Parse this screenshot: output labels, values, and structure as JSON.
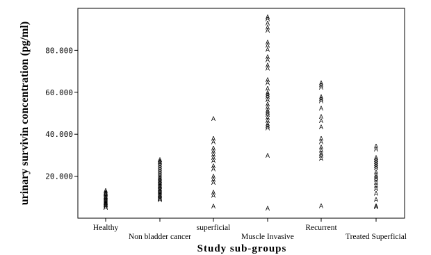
{
  "chart_data": {
    "type": "scatter",
    "ylabel": "urinary survivin concentration (pg/ml)",
    "xlabel": "Study sub-groups",
    "yticks": [
      20,
      40,
      60,
      80
    ],
    "ytick_labels": [
      "20.000",
      "40.000",
      "60.000",
      "80.000"
    ],
    "ylim": [
      0,
      100
    ],
    "categories": [
      "Healthy",
      "Non bladder cancer",
      "superficial",
      "Muscle Invasive",
      "Recurrent",
      "Treated Superficial"
    ],
    "marker": "A",
    "grid": false,
    "series": [
      {
        "category": "Healthy",
        "values": [
          13.2,
          12.5,
          11.8,
          11.2,
          10.5,
          9.8,
          9.2,
          8.6,
          8.0,
          7.4,
          6.9,
          6.4,
          5.8,
          5.2
        ]
      },
      {
        "category": "Non bladder cancer",
        "values": [
          28.0,
          27.2,
          26.5,
          25.5,
          24.5,
          23.5,
          22.5,
          21.5,
          20.5,
          19.6,
          18.8,
          18.0,
          17.2,
          16.5,
          15.8,
          15.0,
          14.3,
          13.6,
          12.9,
          12.2,
          11.5,
          10.8,
          10.1,
          9.4,
          8.7
        ]
      },
      {
        "category": "superficial",
        "values": [
          47.5,
          38.0,
          36.5,
          33.5,
          32.0,
          30.5,
          29.0,
          27.5,
          25.0,
          23.5,
          20.0,
          18.5,
          17.0,
          12.5,
          11.0,
          5.8
        ]
      },
      {
        "category": "Muscle Invasive",
        "values": [
          96.0,
          95.0,
          93.0,
          91.0,
          89.5,
          84.0,
          82.5,
          80.5,
          77.0,
          75.5,
          73.0,
          71.5,
          66.0,
          64.5,
          62.0,
          60.0,
          59.0,
          58.0,
          56.5,
          54.5,
          53.0,
          51.5,
          50.5,
          49.5,
          48.0,
          46.5,
          45.0,
          44.0,
          43.0,
          30.0,
          4.8
        ]
      },
      {
        "category": "Recurrent",
        "values": [
          64.5,
          63.5,
          62.5,
          58.0,
          57.0,
          56.0,
          52.5,
          48.5,
          46.5,
          43.5,
          38.0,
          36.5,
          34.0,
          32.5,
          31.0,
          30.0,
          28.5,
          6.0
        ]
      },
      {
        "category": "Treated Superficial",
        "values": [
          34.5,
          33.0,
          29.0,
          28.0,
          27.0,
          26.0,
          25.0,
          24.0,
          22.0,
          20.5,
          19.5,
          18.5,
          17.0,
          15.5,
          14.0,
          12.0,
          9.0,
          6.0,
          5.5
        ]
      }
    ]
  }
}
